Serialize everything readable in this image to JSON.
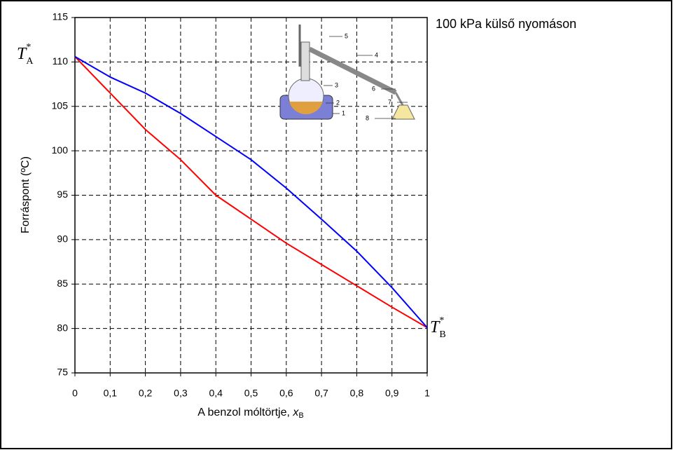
{
  "chart_data": {
    "type": "line",
    "title": "100 kPa külső nyomáson",
    "ylabel": "Forráspont  (ºC)",
    "xlabel": {
      "text": "A benzol móltörtje, ",
      "var": "x",
      "sub": "B"
    },
    "annotations": [
      {
        "symbol": "T",
        "sup": "*",
        "sub": "A"
      },
      {
        "symbol": "T",
        "sup": "*",
        "sub": "B"
      }
    ],
    "apparatus_labels": [
      "1",
      "2",
      "3",
      "4",
      "5",
      "6",
      "7",
      "8"
    ],
    "x": [
      0,
      0.1,
      0.2,
      0.3,
      0.4,
      0.5,
      0.6,
      0.7,
      0.8,
      0.9,
      1
    ],
    "series": [
      {
        "color": "#ff0000",
        "values": [
          110.6,
          106.5,
          102.4,
          99.0,
          95.0,
          92.3,
          89.6,
          87.2,
          84.8,
          82.4,
          80.1
        ]
      },
      {
        "color": "#0000ff",
        "values": [
          110.6,
          108.3,
          106.5,
          104.2,
          101.6,
          99.0,
          95.8,
          92.3,
          88.7,
          84.6,
          80.1
        ]
      }
    ],
    "xlim": [
      0,
      1
    ],
    "ylim": [
      75,
      115
    ],
    "xticks": [
      0,
      {
        "value": 0.1,
        "label": "0,1"
      },
      {
        "value": 0.2,
        "label": "0,2"
      },
      {
        "value": 0.3,
        "label": "0,3"
      },
      {
        "value": 0.4,
        "label": "0,4"
      },
      {
        "value": 0.5,
        "label": "0,5"
      },
      {
        "value": 0.6,
        "label": "0,6"
      },
      {
        "value": 0.7,
        "label": "0,7"
      },
      {
        "value": 0.8,
        "label": "0,8"
      },
      {
        "value": 0.9,
        "label": "0,9"
      },
      1
    ],
    "yticks": [
      75,
      80,
      85,
      90,
      95,
      100,
      105,
      110,
      115
    ],
    "grid": true
  }
}
